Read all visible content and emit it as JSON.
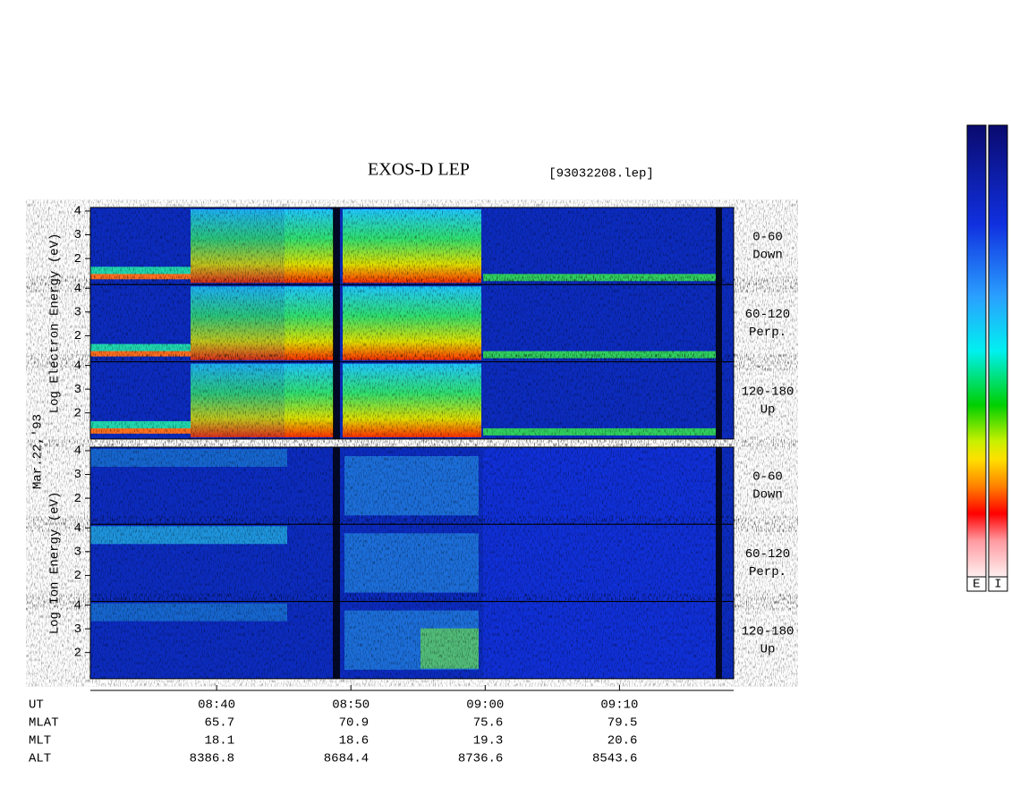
{
  "title": "EXOS-D LEP",
  "file": "[93032208.lep]",
  "date": "Mar.22,'93",
  "ylim": [
    0.9,
    4.15
  ],
  "yticks": [
    2,
    3,
    4
  ],
  "xlim": [
    30.6,
    78.5
  ],
  "xticks": [
    {
      "value": 40,
      "label": "08:40"
    },
    {
      "value": 50,
      "label": "08:50"
    },
    {
      "value": 60,
      "label": "09:00"
    },
    {
      "value": 70,
      "label": "09:10"
    }
  ],
  "ut_label": "UT",
  "ephemeris": [
    {
      "label": "MLAT",
      "values": [
        65.7,
        70.9,
        75.6,
        79.5
      ]
    },
    {
      "label": "MLT",
      "values": [
        18.1,
        18.6,
        19.3,
        20.6
      ]
    },
    {
      "label": "ALT",
      "values": [
        8386.8,
        8684.4,
        8736.6,
        8543.6
      ]
    }
  ],
  "groups": [
    {
      "ylabel": "Log Electron Energy (eV)",
      "panels": [
        [
          "0-60",
          "Down"
        ],
        [
          "60-120",
          "Perp."
        ],
        [
          "120-180",
          "Up"
        ]
      ]
    },
    {
      "ylabel": "Log Ion Energy (eV)",
      "panels": [
        [
          "0-60",
          "Down"
        ],
        [
          "60-120",
          "Perp."
        ],
        [
          "120-180",
          "Up"
        ]
      ]
    }
  ],
  "colorbars": [
    "E",
    "I"
  ]
}
